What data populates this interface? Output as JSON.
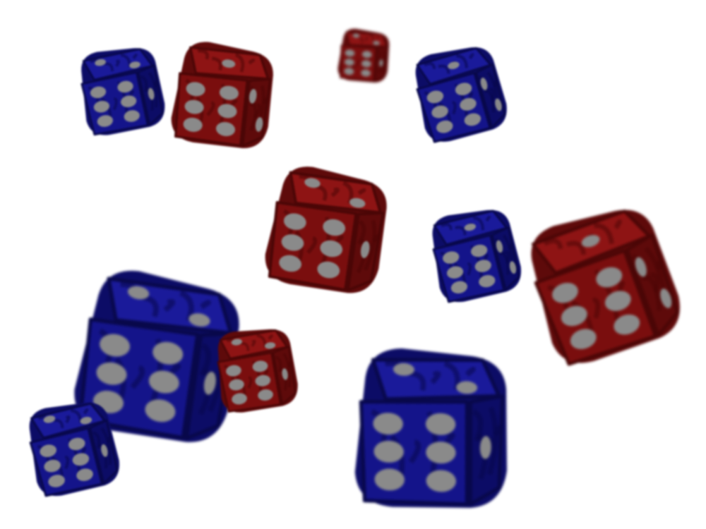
{
  "scene": {
    "description_label": "",
    "colors": {
      "background": "#ffffff",
      "red_face_top": "#8e1414",
      "red_face_front": "#7a0e0e",
      "red_face_side": "#5e0a0a",
      "red_grain": "#4a0606",
      "blue_face_top": "#1a1a9a",
      "blue_face_front": "#14148a",
      "blue_face_side": "#0c0c66",
      "blue_grain": "#08084a",
      "pip": "#8a8a8a"
    },
    "dice": [
      {
        "name": "blue-die-top-left",
        "color": "blue",
        "top_pips": 2,
        "front_pips": 6,
        "side_pips": 1
      },
      {
        "name": "red-die-top-left",
        "color": "red",
        "top_pips": 1,
        "front_pips": 6,
        "side_pips": 2
      },
      {
        "name": "red-die-top-small",
        "color": "red",
        "top_pips": 2,
        "front_pips": 6,
        "side_pips": 1
      },
      {
        "name": "blue-die-top-right",
        "color": "blue",
        "top_pips": 1,
        "front_pips": 6,
        "side_pips": 2
      },
      {
        "name": "red-die-center",
        "color": "red",
        "top_pips": 2,
        "front_pips": 6,
        "side_pips": 1
      },
      {
        "name": "blue-die-center-right",
        "color": "blue",
        "top_pips": 1,
        "front_pips": 6,
        "side_pips": 2
      },
      {
        "name": "red-die-right",
        "color": "red",
        "top_pips": 1,
        "front_pips": 6,
        "side_pips": 2
      },
      {
        "name": "red-die-bottom-left-large",
        "color": "red",
        "top_pips": 2,
        "front_pips": 6,
        "side_pips": 1
      },
      {
        "name": "blue-die-behind-red",
        "color": "blue",
        "top_pips": 2,
        "front_pips": 6,
        "side_pips": 1
      },
      {
        "name": "blue-die-bottom-left",
        "color": "blue",
        "top_pips": 2,
        "front_pips": 6,
        "side_pips": 1
      },
      {
        "name": "blue-die-bottom-large",
        "color": "blue",
        "top_pips": 2,
        "front_pips": 6,
        "side_pips": 1
      }
    ]
  }
}
